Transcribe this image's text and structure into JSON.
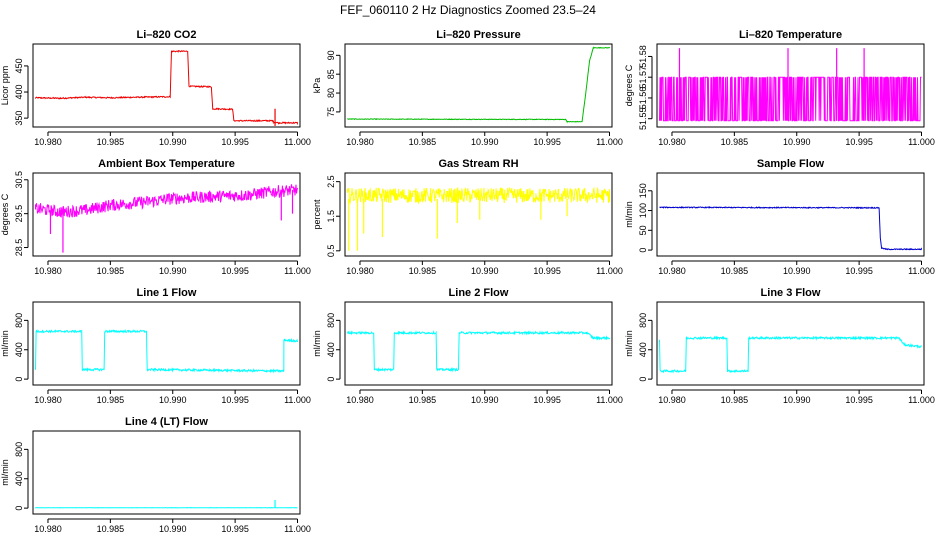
{
  "figure": {
    "title": "FEF_060110  2 Hz Diagnostics Zoomed 23.5–24"
  },
  "chart_data": [
    {
      "id": "co2",
      "type": "line",
      "title": "Li–820 CO2",
      "ylabel": "Licor ppm",
      "color": "#ee0000",
      "xlim": [
        10.9788,
        11.0002
      ],
      "ylim": [
        333,
        492
      ],
      "xticks": [
        10.98,
        10.985,
        10.99,
        10.995,
        11.0
      ],
      "xtick_labels": [
        "10.980",
        "10.985",
        "10.990",
        "10.995",
        "11.000"
      ],
      "yticks": [
        350,
        400,
        450
      ],
      "ytick_labels": [
        "350",
        "400",
        "450"
      ],
      "series": [
        {
          "x": [
            10.979,
            10.981,
            10.983,
            10.985,
            10.987,
            10.9898,
            10.9899,
            10.9912,
            10.9913,
            10.9931,
            10.9932,
            10.9948,
            10.9949,
            10.998,
            10.9981,
            10.9985,
            11.0
          ],
          "y": [
            389,
            388,
            390,
            389,
            390,
            391,
            478,
            478,
            411,
            410,
            368,
            367,
            345,
            345,
            342,
            341,
            341
          ]
        }
      ],
      "spikes": [
        {
          "x": 10.9982,
          "y_from": 335,
          "y_to": 368
        }
      ],
      "noise": 1.2
    },
    {
      "id": "pressure",
      "type": "line",
      "title": "Li–820 Pressure",
      "ylabel": "kPa",
      "color": "#00bb00",
      "xlim": [
        10.9788,
        11.0002
      ],
      "ylim": [
        71,
        93
      ],
      "xticks": [
        10.98,
        10.985,
        10.99,
        10.995,
        11.0
      ],
      "xtick_labels": [
        "10.980",
        "10.985",
        "10.990",
        "10.995",
        "11.000"
      ],
      "yticks": [
        75,
        80,
        85,
        90
      ],
      "ytick_labels": [
        "75",
        "80",
        "85",
        "90"
      ],
      "series": [
        {
          "x": [
            10.979,
            10.9965,
            10.9966,
            10.9978,
            10.9981,
            10.9984,
            10.9987,
            11.0
          ],
          "y": [
            73.1,
            73.0,
            72.4,
            72.4,
            80.0,
            88.5,
            92.0,
            92.0
          ]
        }
      ],
      "spikes": [],
      "noise": 0.08
    },
    {
      "id": "temp",
      "type": "line",
      "title": "Li–820 Temperature",
      "ylabel": "degrees C",
      "color": "#ff00ff",
      "xlim": [
        10.9788,
        11.0002
      ],
      "ylim": [
        51.546,
        51.586
      ],
      "xticks": [
        10.98,
        10.985,
        10.99,
        10.995,
        11.0
      ],
      "xtick_labels": [
        "10.980",
        "10.985",
        "10.990",
        "10.995",
        "11.000"
      ],
      "yticks": [
        51.55,
        51.56,
        51.57,
        51.58
      ],
      "ytick_labels": [
        "51.55",
        "51.56",
        "51.57",
        "51.58"
      ],
      "series": [
        {
          "x": [
            10.979,
            11.0
          ],
          "y": [
            51.57,
            51.57
          ]
        }
      ],
      "spikes": [
        {
          "x": 10.9806,
          "y_from": 51.549,
          "y_to": 51.584
        },
        {
          "x": 10.9893,
          "y_from": 51.549,
          "y_to": 51.584
        },
        {
          "x": 10.9932,
          "y_from": 51.549,
          "y_to": 51.584
        },
        {
          "x": 10.9954,
          "y_from": 51.549,
          "y_to": 51.584
        }
      ],
      "toggle": {
        "low": 51.549,
        "high": 51.57,
        "density": 0.55
      }
    },
    {
      "id": "ambient",
      "type": "line",
      "title": "Ambient Box Temperature",
      "ylabel": "degrees C",
      "color": "#ff00ff",
      "xlim": [
        10.9788,
        11.0002
      ],
      "ylim": [
        28.25,
        30.7
      ],
      "xticks": [
        10.98,
        10.985,
        10.99,
        10.995,
        11.0
      ],
      "xtick_labels": [
        "10.980",
        "10.985",
        "10.990",
        "10.995",
        "11.000"
      ],
      "yticks": [
        28.5,
        29.5,
        30.5
      ],
      "ytick_labels": [
        "28.5",
        "29.5",
        "30.5"
      ],
      "series": [
        {
          "x": [
            10.979,
            10.981,
            10.983,
            10.985,
            10.988,
            10.99,
            10.993,
            10.996,
            10.998,
            11.0
          ],
          "y": [
            29.65,
            29.55,
            29.6,
            29.75,
            29.85,
            29.95,
            30.0,
            30.05,
            30.15,
            30.2
          ]
        }
      ],
      "spikes": [
        {
          "x": 10.9812,
          "y_from": 29.6,
          "y_to": 28.35
        },
        {
          "x": 10.9802,
          "y_from": 29.6,
          "y_to": 28.9
        },
        {
          "x": 10.9987,
          "y_from": 30.2,
          "y_to": 29.3
        },
        {
          "x": 10.9996,
          "y_from": 30.2,
          "y_to": 29.5
        }
      ],
      "noise": 0.18
    },
    {
      "id": "rh",
      "type": "line",
      "title": "Gas Stream RH",
      "ylabel": "percent",
      "color": "#ffff00",
      "xlim": [
        10.9788,
        11.0002
      ],
      "ylim": [
        0.35,
        2.75
      ],
      "xticks": [
        10.98,
        10.985,
        10.99,
        10.995,
        11.0
      ],
      "xtick_labels": [
        "10.980",
        "10.985",
        "10.990",
        "10.995",
        "11.000"
      ],
      "yticks": [
        0.5,
        1.5,
        2.5
      ],
      "ytick_labels": [
        "0.5",
        "1.5",
        "2.5"
      ],
      "series": [
        {
          "x": [
            10.979,
            11.0
          ],
          "y": [
            2.1,
            2.1
          ]
        }
      ],
      "spikes": [
        {
          "x": 10.9791,
          "y_from": 2.0,
          "y_to": 0.5
        },
        {
          "x": 10.9798,
          "y_from": 2.0,
          "y_to": 0.5
        },
        {
          "x": 10.9803,
          "y_from": 2.0,
          "y_to": 1.0
        },
        {
          "x": 10.9818,
          "y_from": 2.0,
          "y_to": 0.9
        },
        {
          "x": 10.9862,
          "y_from": 2.0,
          "y_to": 0.85
        },
        {
          "x": 10.9878,
          "y_from": 2.0,
          "y_to": 1.3
        },
        {
          "x": 10.9896,
          "y_from": 2.0,
          "y_to": 1.4
        },
        {
          "x": 10.9945,
          "y_from": 2.0,
          "y_to": 1.4
        },
        {
          "x": 10.9966,
          "y_from": 2.0,
          "y_to": 1.5
        }
      ],
      "noise": 0.22
    },
    {
      "id": "sample",
      "type": "line",
      "title": "Sample Flow",
      "ylabel": "ml/min",
      "color": "#0000cc",
      "xlim": [
        10.9788,
        11.0002
      ],
      "ylim": [
        -15,
        195
      ],
      "xticks": [
        10.98,
        10.985,
        10.99,
        10.995,
        11.0
      ],
      "xtick_labels": [
        "10.980",
        "10.985",
        "10.990",
        "10.995",
        "11.000"
      ],
      "yticks": [
        0,
        50,
        100,
        150
      ],
      "ytick_labels": [
        "0",
        "50",
        "100",
        "150"
      ],
      "series": [
        {
          "x": [
            10.979,
            10.9966,
            10.9967,
            10.9968,
            10.9972,
            11.0
          ],
          "y": [
            108,
            107,
            30,
            5,
            2,
            2
          ]
        }
      ],
      "spikes": [],
      "noise": 1.2
    },
    {
      "id": "line1",
      "type": "line",
      "title": "Line 1 Flow",
      "ylabel": "ml/min",
      "color": "#00ffff",
      "xlim": [
        10.9788,
        11.0002
      ],
      "ylim": [
        -80,
        1050
      ],
      "xticks": [
        10.98,
        10.985,
        10.99,
        10.995,
        11.0
      ],
      "xtick_labels": [
        "10.980",
        "10.985",
        "10.990",
        "10.995",
        "11.000"
      ],
      "yticks": [
        0,
        400,
        800
      ],
      "ytick_labels": [
        "0",
        "400",
        "800"
      ],
      "series": [
        {
          "x": [
            10.979,
            10.97905,
            10.9827,
            10.98275,
            10.9845,
            10.98455,
            10.9879,
            10.98795,
            10.9989,
            10.9982,
            10.99825,
            10.999,
            11.0
          ],
          "y": [
            130,
            650,
            650,
            130,
            130,
            650,
            650,
            130,
            110,
            110,
            600,
            530,
            520
          ]
        }
      ],
      "spikes": [],
      "noise": 14
    },
    {
      "id": "line2",
      "type": "line",
      "title": "Line 2 Flow",
      "ylabel": "ml/min",
      "color": "#00ffff",
      "xlim": [
        10.9788,
        11.0002
      ],
      "ylim": [
        -80,
        1050
      ],
      "xticks": [
        10.98,
        10.985,
        10.99,
        10.995,
        11.0
      ],
      "xtick_labels": [
        "10.980",
        "10.985",
        "10.990",
        "10.995",
        "11.000"
      ],
      "yticks": [
        0,
        400,
        800
      ],
      "ytick_labels": [
        "0",
        "400",
        "800"
      ],
      "series": [
        {
          "x": [
            10.979,
            10.9811,
            10.98115,
            10.9827,
            10.98275,
            10.9861,
            10.98615,
            10.9879,
            10.98795,
            10.9982,
            10.9987,
            11.0
          ],
          "y": [
            630,
            630,
            130,
            130,
            630,
            630,
            130,
            130,
            630,
            630,
            560,
            560
          ]
        }
      ],
      "spikes": [],
      "noise": 14
    },
    {
      "id": "line3",
      "type": "line",
      "title": "Line 3 Flow",
      "ylabel": "ml/min",
      "color": "#00ffff",
      "xlim": [
        10.9788,
        11.0002
      ],
      "ylim": [
        -80,
        1050
      ],
      "xticks": [
        10.98,
        10.985,
        10.99,
        10.995,
        11.0
      ],
      "xtick_labels": [
        "10.980",
        "10.985",
        "10.990",
        "10.995",
        "11.000"
      ],
      "yticks": [
        0,
        400,
        800
      ],
      "ytick_labels": [
        "0",
        "400",
        "800"
      ],
      "series": [
        {
          "x": [
            10.979,
            10.97905,
            10.9811,
            10.98115,
            10.9844,
            10.98445,
            10.9861,
            10.98615,
            10.9982,
            10.9986,
            11.0
          ],
          "y": [
            530,
            110,
            110,
            560,
            560,
            110,
            110,
            560,
            560,
            470,
            440
          ]
        }
      ],
      "spikes": [],
      "noise": 14
    },
    {
      "id": "line4",
      "type": "line",
      "title": "Line 4 (LT) Flow",
      "ylabel": "ml/min",
      "color": "#00ffff",
      "xlim": [
        10.9788,
        11.0002
      ],
      "ylim": [
        -80,
        1050
      ],
      "xticks": [
        10.98,
        10.985,
        10.99,
        10.995,
        11.0
      ],
      "xtick_labels": [
        "10.980",
        "10.985",
        "10.990",
        "10.995",
        "11.000"
      ],
      "yticks": [
        0,
        400,
        800
      ],
      "ytick_labels": [
        "0",
        "400",
        "800"
      ],
      "series": [
        {
          "x": [
            10.979,
            11.0
          ],
          "y": [
            5,
            5
          ]
        }
      ],
      "spikes": [
        {
          "x": 10.9982,
          "y_from": 5,
          "y_to": 110
        }
      ],
      "noise": 2
    }
  ]
}
